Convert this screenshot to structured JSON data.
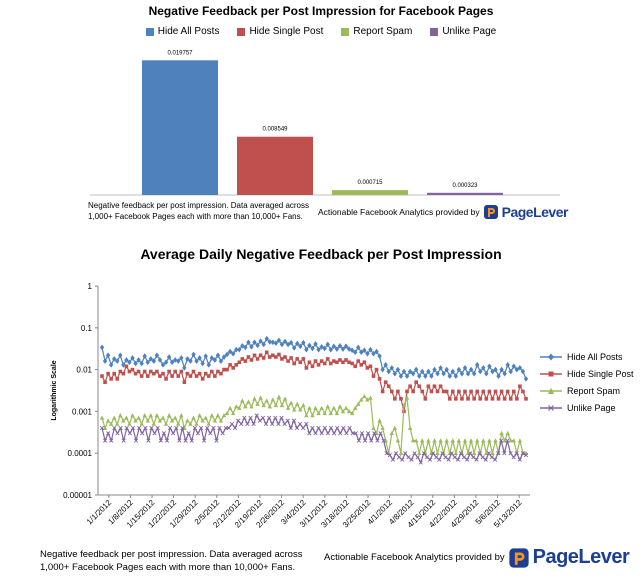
{
  "chart_data": [
    {
      "type": "bar",
      "title": "Negative Feedback per Post Impression for Facebook Pages",
      "categories": [
        "Hide All Posts",
        "Hide Single  Post",
        "Report Spam",
        "Unlike Page"
      ],
      "values": [
        0.019757,
        0.008549,
        0.000715,
        0.000323
      ],
      "value_labels": [
        "0.019757",
        "0.008549",
        "0.000715",
        "0.000323"
      ],
      "colors": [
        "#4f81bd",
        "#c0504d",
        "#9bbb59",
        "#8064a2"
      ],
      "ylim": [
        0,
        0.022
      ],
      "legend_position": "top",
      "xlabel": "",
      "ylabel": ""
    },
    {
      "type": "line",
      "title": "Average Daily Negative Feedback per Post Impression",
      "ylabel": "Logarithmic Scale",
      "yscale": "log",
      "ylim": [
        1e-05,
        1
      ],
      "yticks": [
        "1",
        "0.1",
        "0.01",
        "0.001",
        "0.0001",
        "0.00001"
      ],
      "xticks": [
        "1/1/2012",
        "1/8/2012",
        "1/15/2012",
        "1/22/2012",
        "1/29/2012",
        "2/5/2012",
        "2/12/2012",
        "2/19/2012",
        "2/26/2012",
        "3/4/2012",
        "3/11/2012",
        "3/18/2012",
        "3/25/2012",
        "4/1/2012",
        "4/8/2012",
        "4/15/2012",
        "4/22/2012",
        "4/29/2012",
        "5/6/2012",
        "5/13/2012"
      ],
      "legend_position": "right",
      "series": [
        {
          "name": "Hide All Posts",
          "color": "#4f81bd",
          "marker": "diamond",
          "values": [
            0.034,
            0.016,
            0.022,
            0.013,
            0.018,
            0.016,
            0.022,
            0.013,
            0.017,
            0.015,
            0.019,
            0.014,
            0.017,
            0.014,
            0.021,
            0.015,
            0.018,
            0.016,
            0.022,
            0.017,
            0.013,
            0.015,
            0.02,
            0.015,
            0.017,
            0.016,
            0.019,
            0.011,
            0.018,
            0.016,
            0.023,
            0.016,
            0.019,
            0.014,
            0.021,
            0.013,
            0.019,
            0.017,
            0.022,
            0.016,
            0.02,
            0.023,
            0.027,
            0.024,
            0.03,
            0.03,
            0.037,
            0.034,
            0.045,
            0.035,
            0.045,
            0.038,
            0.048,
            0.04,
            0.055,
            0.046,
            0.045,
            0.043,
            0.05,
            0.04,
            0.047,
            0.04,
            0.044,
            0.033,
            0.042,
            0.036,
            0.044,
            0.03,
            0.038,
            0.032,
            0.041,
            0.03,
            0.035,
            0.032,
            0.04,
            0.03,
            0.036,
            0.031,
            0.037,
            0.031,
            0.036,
            0.031,
            0.029,
            0.026,
            0.034,
            0.026,
            0.029,
            0.024,
            0.03,
            0.024,
            0.027,
            0.021,
            0.01,
            0.013,
            0.009,
            0.011,
            0.008,
            0.01,
            0.007,
            0.009,
            0.007,
            0.009,
            0.008,
            0.01,
            0.007,
            0.009,
            0.007,
            0.009,
            0.007,
            0.01,
            0.008,
            0.011,
            0.008,
            0.01,
            0.007,
            0.009,
            0.007,
            0.01,
            0.008,
            0.011,
            0.008,
            0.01,
            0.008,
            0.013,
            0.009,
            0.011,
            0.008,
            0.012,
            0.009,
            0.01,
            0.007,
            0.01,
            0.008,
            0.013,
            0.009,
            0.012,
            0.01,
            0.011,
            0.009,
            0.006
          ]
        },
        {
          "name": "Hide Single  Post",
          "color": "#c0504d",
          "marker": "square",
          "values": [
            0.007,
            0.005,
            0.008,
            0.006,
            0.008,
            0.006,
            0.009,
            0.008,
            0.012,
            0.009,
            0.01,
            0.008,
            0.009,
            0.007,
            0.009,
            0.007,
            0.009,
            0.008,
            0.009,
            0.007,
            0.008,
            0.006,
            0.009,
            0.007,
            0.009,
            0.007,
            0.009,
            0.005,
            0.008,
            0.007,
            0.009,
            0.007,
            0.008,
            0.006,
            0.008,
            0.007,
            0.009,
            0.007,
            0.009,
            0.008,
            0.01,
            0.01,
            0.013,
            0.011,
            0.013,
            0.015,
            0.018,
            0.016,
            0.02,
            0.017,
            0.022,
            0.018,
            0.022,
            0.019,
            0.026,
            0.02,
            0.022,
            0.02,
            0.023,
            0.018,
            0.02,
            0.016,
            0.019,
            0.014,
            0.018,
            0.015,
            0.018,
            0.011,
            0.015,
            0.012,
            0.016,
            0.013,
            0.016,
            0.014,
            0.018,
            0.014,
            0.016,
            0.015,
            0.017,
            0.015,
            0.017,
            0.015,
            0.014,
            0.012,
            0.016,
            0.013,
            0.015,
            0.011,
            0.012,
            0.007,
            0.01,
            0.006,
            0.003,
            0.005,
            0.004,
            0.003,
            0.002,
            0.003,
            0.002,
            0.001,
            0.003,
            0.004,
            0.003,
            0.005,
            0.004,
            0.003,
            0.002,
            0.004,
            0.003,
            0.004,
            0.003,
            0.004,
            0.003,
            0.003,
            0.002,
            0.003,
            0.002,
            0.003,
            0.002,
            0.003,
            0.002,
            0.003,
            0.002,
            0.003,
            0.002,
            0.003,
            0.002,
            0.003,
            0.002,
            0.003,
            0.002,
            0.003,
            0.002,
            0.003,
            0.002,
            0.003,
            0.002,
            0.004,
            0.003,
            0.002
          ]
        },
        {
          "name": "Report Spam",
          "color": "#9bbb59",
          "marker": "triangle",
          "values": [
            0.0007,
            0.0004,
            0.0006,
            0.0005,
            0.0007,
            0.0005,
            0.0008,
            0.0006,
            0.0007,
            0.0005,
            0.0008,
            0.0006,
            0.0007,
            0.0005,
            0.0008,
            0.0006,
            0.0008,
            0.0005,
            0.0008,
            0.0006,
            0.0007,
            0.0005,
            0.0008,
            0.0006,
            0.0007,
            0.0005,
            0.0008,
            0.0004,
            0.0006,
            0.0005,
            0.0007,
            0.0005,
            0.0008,
            0.0006,
            0.0007,
            0.0005,
            0.0008,
            0.0006,
            0.0008,
            0.0006,
            0.0008,
            0.0009,
            0.0012,
            0.0009,
            0.0013,
            0.0012,
            0.0018,
            0.0013,
            0.0017,
            0.0013,
            0.002,
            0.0015,
            0.0021,
            0.0014,
            0.0018,
            0.0013,
            0.0019,
            0.0014,
            0.0022,
            0.0014,
            0.002,
            0.0012,
            0.0016,
            0.0011,
            0.0015,
            0.0011,
            0.0014,
            0.0008,
            0.0012,
            0.0008,
            0.0012,
            0.0009,
            0.0012,
            0.0009,
            0.0013,
            0.0009,
            0.0012,
            0.0009,
            0.0013,
            0.001,
            0.0012,
            0.001,
            0.0009,
            0.0012,
            0.0015,
            0.0019,
            0.0023,
            0.0019,
            0.0021,
            0.0004,
            0.0003,
            0.0006,
            0.0004,
            0.0002,
            0.0001,
            0.0003,
            0.0004,
            0.0002,
            0.0001,
            0.0014,
            0.0021,
            0.0004,
            0.0002,
            0.0002,
            0.0001,
            0.0002,
            0.0001,
            0.0002,
            0.0001,
            0.0002,
            0.0001,
            0.0002,
            0.0001,
            0.0002,
            0.0001,
            0.0002,
            0.0001,
            0.0002,
            0.0001,
            0.0002,
            0.0001,
            0.0002,
            0.0001,
            0.0002,
            0.0001,
            0.0002,
            0.0001,
            0.0002,
            0.0001,
            0.0002,
            0.0001,
            0.0003,
            0.0002,
            0.0003,
            0.0002,
            0.0002,
            0.0001,
            0.0002,
            0.0001,
            0.0001
          ]
        },
        {
          "name": "Unlike Page",
          "color": "#8064a2",
          "marker": "x",
          "values": [
            0.0004,
            0.0002,
            0.0003,
            0.0002,
            0.0004,
            0.0003,
            0.0004,
            0.0002,
            0.0004,
            0.0003,
            0.0004,
            0.0002,
            0.0004,
            0.0003,
            0.0004,
            0.0002,
            0.0004,
            0.0003,
            0.0004,
            0.0002,
            0.0003,
            0.0002,
            0.0004,
            0.0003,
            0.0004,
            0.0002,
            0.0004,
            0.0002,
            0.0003,
            0.0002,
            0.0004,
            0.0003,
            0.0004,
            0.0002,
            0.0004,
            0.0003,
            0.0004,
            0.0002,
            0.0004,
            0.0003,
            0.0004,
            0.0004,
            0.0005,
            0.0004,
            0.0006,
            0.0005,
            0.0007,
            0.0005,
            0.0007,
            0.0005,
            0.0008,
            0.0006,
            0.0007,
            0.0005,
            0.0007,
            0.0005,
            0.0007,
            0.0005,
            0.0007,
            0.0005,
            0.0006,
            0.0004,
            0.0006,
            0.0004,
            0.0005,
            0.0004,
            0.0005,
            0.0003,
            0.0004,
            0.0003,
            0.0004,
            0.0003,
            0.0004,
            0.0003,
            0.0004,
            0.0003,
            0.0004,
            0.0003,
            0.0004,
            0.0003,
            0.0004,
            0.0003,
            0.0003,
            0.0002,
            0.0003,
            0.0002,
            0.0003,
            0.0002,
            0.0003,
            0.0002,
            0.0003,
            0.0002,
            0.0001,
            9e-05,
            7e-05,
            0.0001,
            8e-05,
            7e-05,
            0.0001,
            8e-05,
            7e-05,
            0.0001,
            8e-05,
            6e-05,
            0.0001,
            8e-05,
            7e-05,
            0.0001,
            8e-05,
            7e-05,
            0.0001,
            8e-05,
            7e-05,
            0.0001,
            8e-05,
            7e-05,
            0.0001,
            8e-05,
            7e-05,
            0.0001,
            8e-05,
            7e-05,
            0.0001,
            8e-05,
            7e-05,
            0.0001,
            8e-05,
            7e-05,
            0.0001,
            0.0002,
            0.0001,
            0.0002,
            0.0001,
            8e-05,
            0.0001,
            7e-05,
            0.0001,
            9e-05
          ]
        }
      ]
    }
  ],
  "footer": {
    "note_line1": "Negative feedback per post impression. Data averaged across",
    "note_line2": "1,000+ Facebook Pages each with more than 10,000+ Fans.",
    "credit": "Actionable Facebook Analytics provided by",
    "logo_text": "PageLever"
  }
}
